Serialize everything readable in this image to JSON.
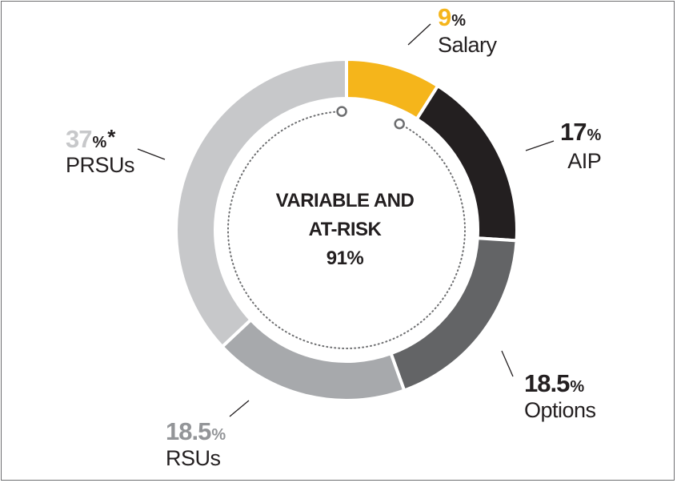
{
  "chart_data": {
    "type": "pie",
    "variant": "donut",
    "title": "",
    "center_label": {
      "line1": "VARIABLE AND",
      "line2": "AT-RISK",
      "value": "91%"
    },
    "slices": [
      {
        "name": "Salary",
        "value": 9,
        "value_text": "9",
        "color": "#f5b51b",
        "label_color": "#f5b51b",
        "note": ""
      },
      {
        "name": "AIP",
        "value": 17,
        "value_text": "17",
        "color": "#231f20",
        "label_color": "#231f20",
        "note": ""
      },
      {
        "name": "Options",
        "value": 18.5,
        "value_text": "18.5",
        "color": "#636466",
        "label_color": "#231f20",
        "note": ""
      },
      {
        "name": "RSUs",
        "value": 18.5,
        "value_text": "18.5",
        "color": "#a7a9ac",
        "label_color": "#939598",
        "note": ""
      },
      {
        "name": "PRSUs",
        "value": 37,
        "value_text": "37",
        "color": "#c7c8ca",
        "label_color": "#c7c8ca",
        "note": "*"
      }
    ],
    "percent_symbol": "%",
    "inner_arc_color": "#6d6e70"
  }
}
